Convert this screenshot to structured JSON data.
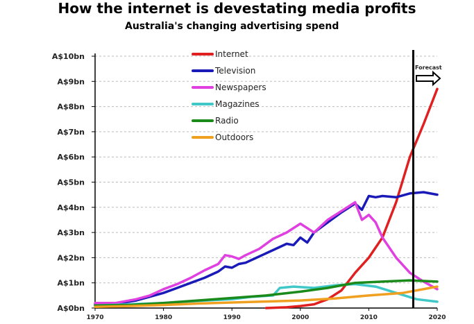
{
  "header": {
    "title": "How the internet is devestating media profits",
    "subtitle": "Australia's changing advertising spend"
  },
  "chart_data": {
    "type": "line",
    "title": "How the internet is devestating media profits",
    "subtitle": "Australia's changing advertising spend",
    "xlabel": "",
    "ylabel": "",
    "xlim": [
      1970,
      2020
    ],
    "ylim": [
      0,
      10
    ],
    "x_ticks": [
      "1970",
      "1980",
      "1990",
      "2000",
      "2010",
      "2020"
    ],
    "y_ticks": [
      "A$0bn",
      "A$1bn",
      "A$2bn",
      "A$3bn",
      "A$4bn",
      "A$5bn",
      "A$6bn",
      "A$7bn",
      "A$8bn",
      "A$9bn",
      "A$10bn"
    ],
    "grid": "horizontal dashed",
    "legend_position": "top-center",
    "forecast_year": 2016.5,
    "forecast_label": "Forecast",
    "series": [
      {
        "name": "Internet",
        "color": "#e02020",
        "points": [
          [
            1995,
            0.0
          ],
          [
            1998,
            0.03
          ],
          [
            2000,
            0.08
          ],
          [
            2002,
            0.15
          ],
          [
            2004,
            0.35
          ],
          [
            2006,
            0.7
          ],
          [
            2008,
            1.4
          ],
          [
            2010,
            2.0
          ],
          [
            2012,
            2.8
          ],
          [
            2014,
            4.2
          ],
          [
            2016,
            6.0
          ],
          [
            2018,
            7.3
          ],
          [
            2020,
            8.7
          ]
        ]
      },
      {
        "name": "Television",
        "color": "#1a1ab8",
        "points": [
          [
            1970,
            0.15
          ],
          [
            1973,
            0.17
          ],
          [
            1976,
            0.3
          ],
          [
            1978,
            0.45
          ],
          [
            1980,
            0.6
          ],
          [
            1982,
            0.8
          ],
          [
            1984,
            1.0
          ],
          [
            1986,
            1.2
          ],
          [
            1988,
            1.45
          ],
          [
            1989,
            1.65
          ],
          [
            1990,
            1.6
          ],
          [
            1991,
            1.75
          ],
          [
            1992,
            1.8
          ],
          [
            1994,
            2.05
          ],
          [
            1996,
            2.3
          ],
          [
            1998,
            2.55
          ],
          [
            1999,
            2.5
          ],
          [
            2000,
            2.8
          ],
          [
            2001,
            2.6
          ],
          [
            2002,
            3.0
          ],
          [
            2004,
            3.4
          ],
          [
            2006,
            3.8
          ],
          [
            2008,
            4.15
          ],
          [
            2009,
            3.9
          ],
          [
            2010,
            4.45
          ],
          [
            2011,
            4.4
          ],
          [
            2012,
            4.45
          ],
          [
            2014,
            4.4
          ],
          [
            2016,
            4.55
          ],
          [
            2018,
            4.6
          ],
          [
            2020,
            4.5
          ]
        ]
      },
      {
        "name": "Newspapers",
        "color": "#e040e0",
        "points": [
          [
            1970,
            0.2
          ],
          [
            1973,
            0.2
          ],
          [
            1976,
            0.35
          ],
          [
            1978,
            0.5
          ],
          [
            1980,
            0.75
          ],
          [
            1982,
            0.95
          ],
          [
            1984,
            1.2
          ],
          [
            1986,
            1.5
          ],
          [
            1988,
            1.75
          ],
          [
            1989,
            2.1
          ],
          [
            1990,
            2.05
          ],
          [
            1991,
            1.95
          ],
          [
            1992,
            2.1
          ],
          [
            1994,
            2.35
          ],
          [
            1996,
            2.75
          ],
          [
            1998,
            3.0
          ],
          [
            2000,
            3.35
          ],
          [
            2002,
            3.0
          ],
          [
            2004,
            3.5
          ],
          [
            2006,
            3.85
          ],
          [
            2008,
            4.2
          ],
          [
            2009,
            3.5
          ],
          [
            2010,
            3.7
          ],
          [
            2011,
            3.4
          ],
          [
            2012,
            2.8
          ],
          [
            2014,
            2.0
          ],
          [
            2016,
            1.4
          ],
          [
            2018,
            1.05
          ],
          [
            2020,
            0.75
          ]
        ]
      },
      {
        "name": "Magazines",
        "color": "#40c8c8",
        "points": [
          [
            1970,
            0.1
          ],
          [
            1975,
            0.15
          ],
          [
            1980,
            0.2
          ],
          [
            1985,
            0.28
          ],
          [
            1990,
            0.35
          ],
          [
            1993,
            0.45
          ],
          [
            1996,
            0.5
          ],
          [
            1997,
            0.8
          ],
          [
            1999,
            0.85
          ],
          [
            2002,
            0.8
          ],
          [
            2005,
            0.9
          ],
          [
            2008,
            0.95
          ],
          [
            2011,
            0.85
          ],
          [
            2014,
            0.6
          ],
          [
            2017,
            0.35
          ],
          [
            2020,
            0.25
          ]
        ]
      },
      {
        "name": "Radio",
        "color": "#1a8a1a",
        "points": [
          [
            1970,
            0.1
          ],
          [
            1975,
            0.12
          ],
          [
            1980,
            0.2
          ],
          [
            1985,
            0.3
          ],
          [
            1990,
            0.4
          ],
          [
            1995,
            0.5
          ],
          [
            2000,
            0.65
          ],
          [
            2004,
            0.8
          ],
          [
            2008,
            1.0
          ],
          [
            2012,
            1.05
          ],
          [
            2016,
            1.1
          ],
          [
            2020,
            1.05
          ]
        ]
      },
      {
        "name": "Outdoors",
        "color": "#f0a020",
        "points": [
          [
            1970,
            0.05
          ],
          [
            1975,
            0.08
          ],
          [
            1980,
            0.12
          ],
          [
            1985,
            0.18
          ],
          [
            1990,
            0.22
          ],
          [
            1995,
            0.26
          ],
          [
            2000,
            0.3
          ],
          [
            2005,
            0.38
          ],
          [
            2010,
            0.5
          ],
          [
            2015,
            0.6
          ],
          [
            2020,
            0.85
          ]
        ]
      }
    ]
  }
}
